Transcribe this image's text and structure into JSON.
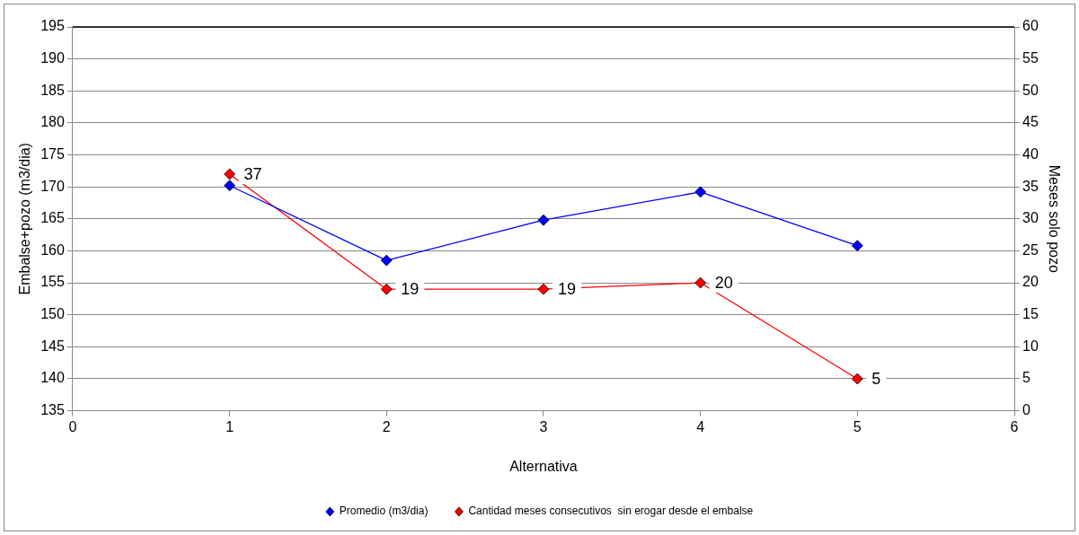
{
  "chart_data": {
    "type": "line",
    "xlabel": "Alternativa",
    "ylabel": "Embalse+pozo (m3/dia)",
    "y2label": "Meses solo pozo",
    "x": [
      1,
      2,
      3,
      4,
      5
    ],
    "series": [
      {
        "name": "Promedio (m3/dia)",
        "color": "#0000ff",
        "values": [
          170.2,
          158.5,
          164.8,
          169.2,
          160.8
        ]
      },
      {
        "name": "Cantidad meses consecutivos  sin erogar desde el embalse",
        "color": "#ff0000",
        "axis": "y2",
        "values": [
          37,
          19,
          19,
          20,
          5
        ],
        "value_labels": [
          "37",
          "19",
          "19",
          "20",
          "5"
        ]
      }
    ],
    "xlim": [
      0,
      6
    ],
    "xticks": [
      0,
      1,
      2,
      3,
      4,
      5,
      6
    ],
    "ylim": [
      135,
      195
    ],
    "yticks": [
      135,
      140,
      145,
      150,
      155,
      160,
      165,
      170,
      175,
      180,
      185,
      190,
      195
    ],
    "y2lim": [
      0,
      60
    ],
    "y2ticks": [
      0,
      5,
      10,
      15,
      20,
      25,
      30,
      35,
      40,
      45,
      50,
      55,
      60
    ],
    "grid": "y",
    "legend": "bottom",
    "marker": "diamond",
    "line_style": "solid"
  }
}
